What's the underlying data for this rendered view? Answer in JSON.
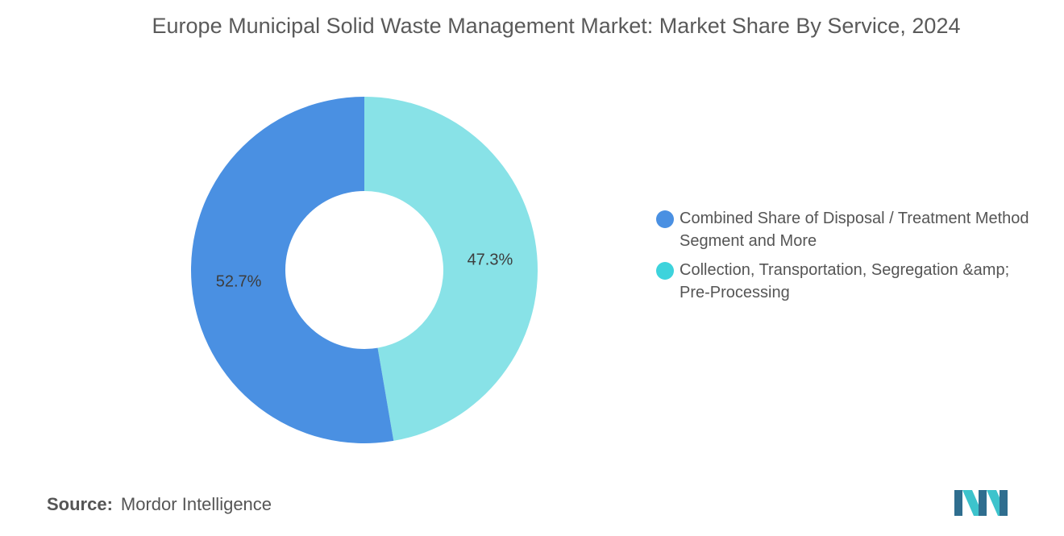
{
  "chart_data": {
    "type": "pie",
    "title": "Europe Municipal Solid Waste Management Market: Market Share By Service, 2024",
    "categories": [
      "Combined Share of Disposal / Treatment Method Segment and More",
      "Collection, Transportation, Segregation &amp; Pre-Processing"
    ],
    "values": [
      52.7,
      47.3
    ],
    "value_labels": [
      "52.7%",
      "47.3%"
    ],
    "colors": [
      "#4a90e2",
      "#88e2e7"
    ],
    "legend_colors": [
      "#4a90e2",
      "#3dd3dc"
    ],
    "donut": true,
    "legend_position": "right"
  },
  "source": {
    "label": "Source:",
    "text": "Mordor Intelligence"
  }
}
